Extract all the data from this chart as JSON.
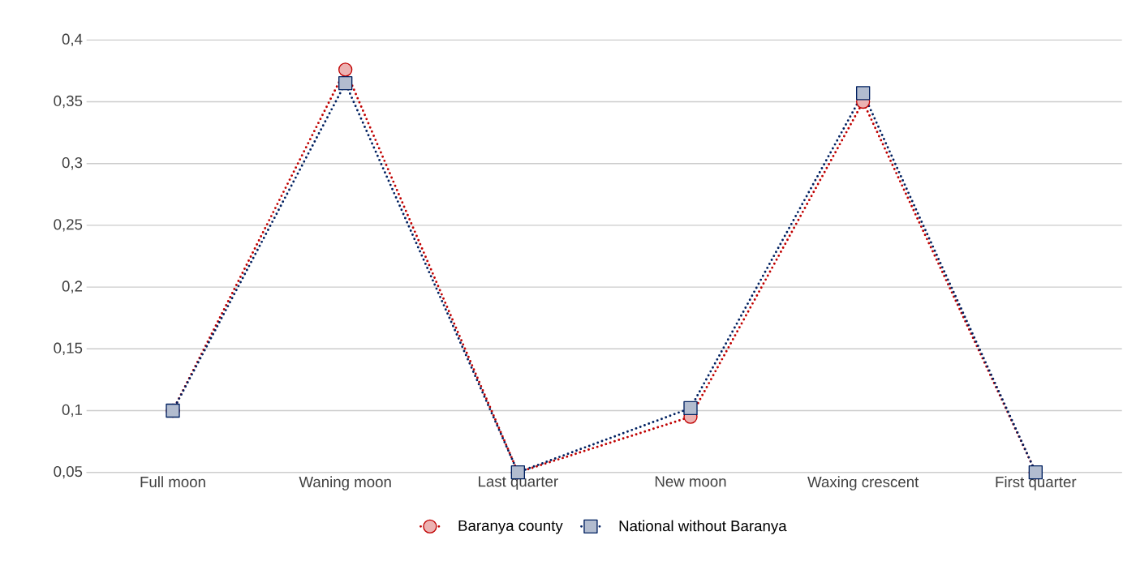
{
  "chart_data": {
    "type": "line",
    "categories": [
      "Full moon",
      "Waning moon",
      "Last quarter",
      "New moon",
      "Waxing crescent",
      "First quarter"
    ],
    "series": [
      {
        "name": "Baranya county",
        "color": "#c00000",
        "marker": "circle",
        "values": [
          0.1,
          0.376,
          0.05,
          0.095,
          0.35,
          0.05
        ]
      },
      {
        "name": "National without Baranya",
        "color": "#002060",
        "marker": "square",
        "values": [
          0.1,
          0.365,
          0.05,
          0.102,
          0.357,
          0.05
        ]
      }
    ],
    "ylim": [
      0.05,
      0.4
    ],
    "yticks": [
      {
        "value": 0.05,
        "label": "0,05"
      },
      {
        "value": 0.1,
        "label": "0,1"
      },
      {
        "value": 0.15,
        "label": "0,15"
      },
      {
        "value": 0.2,
        "label": "0,2"
      },
      {
        "value": 0.25,
        "label": "0,25"
      },
      {
        "value": 0.3,
        "label": "0,3"
      },
      {
        "value": 0.35,
        "label": "0,35"
      },
      {
        "value": 0.4,
        "label": "0,4"
      }
    ],
    "grid": "y",
    "legend": "bottom",
    "line_style": "dotted"
  }
}
